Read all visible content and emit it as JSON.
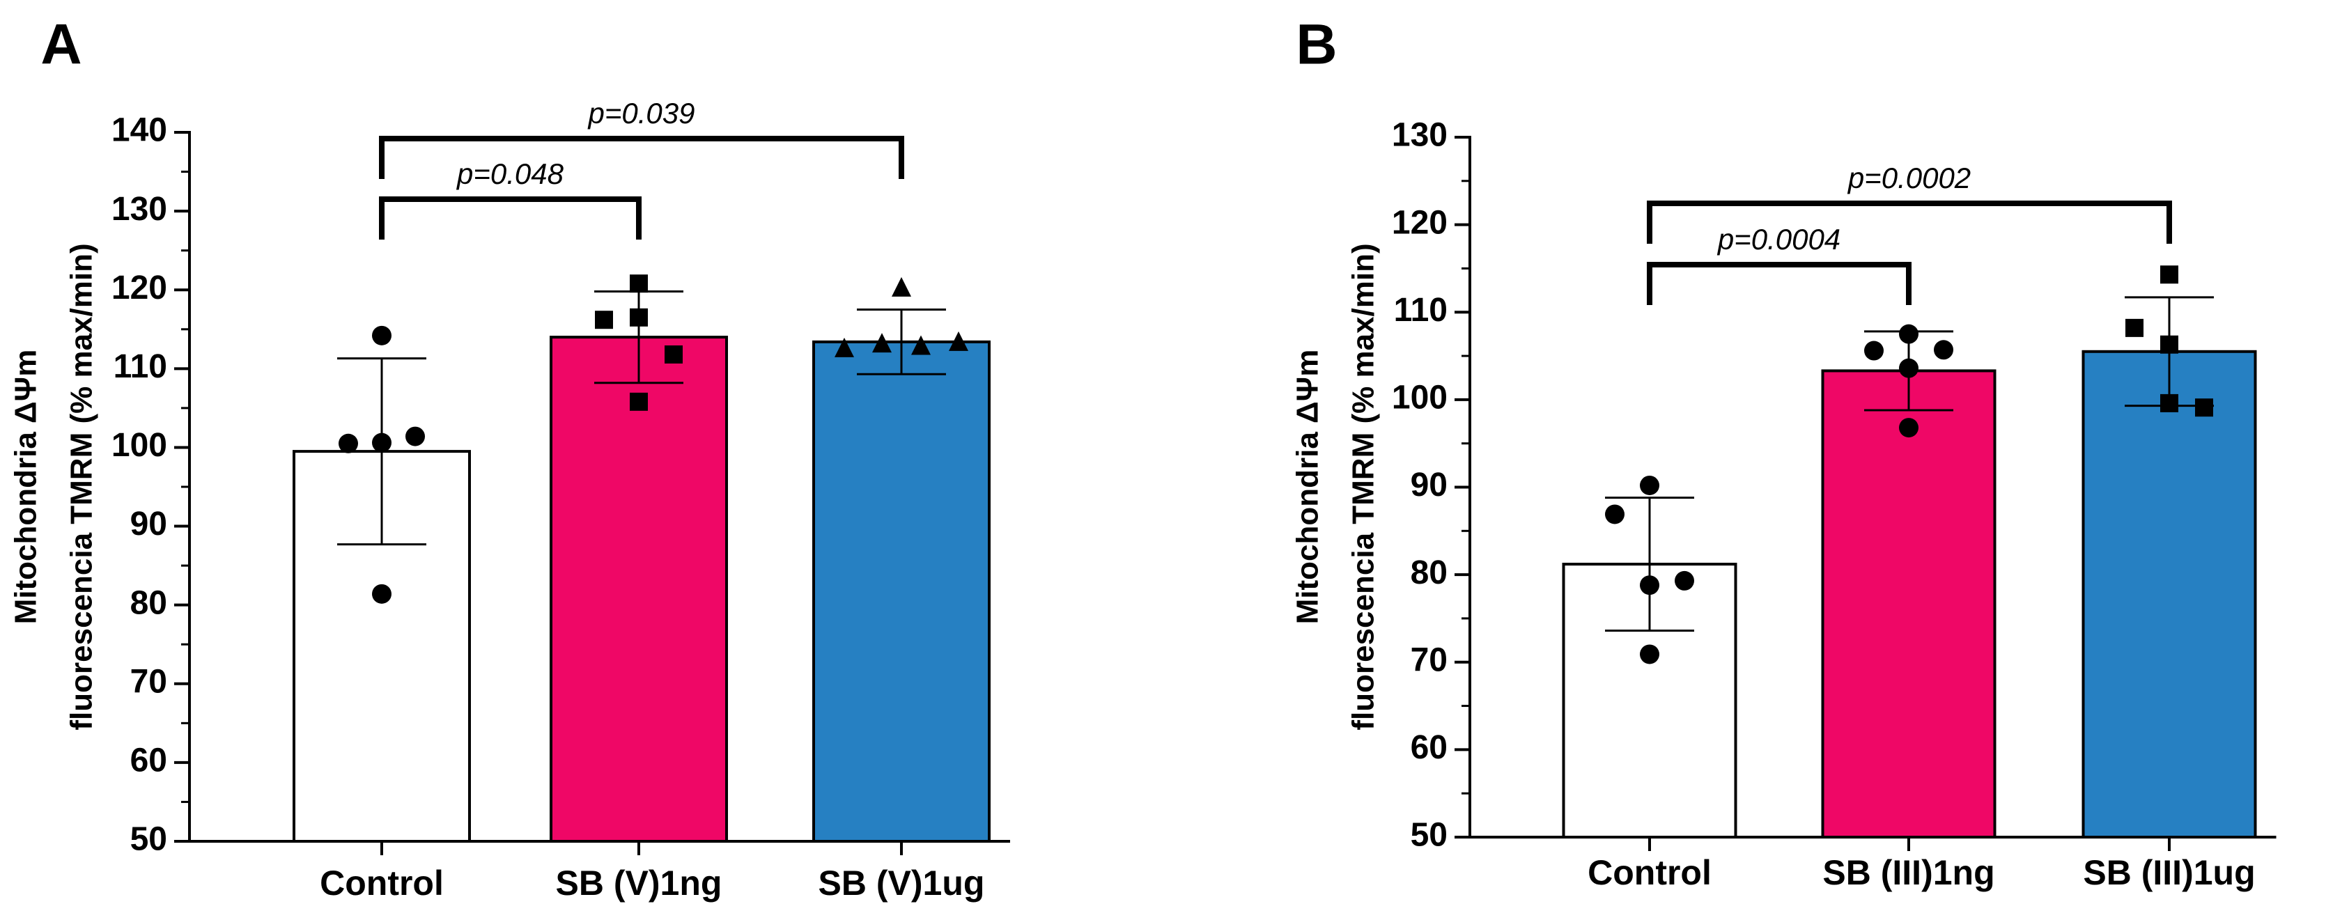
{
  "chart_data": [
    {
      "type": "bar",
      "panel_label": "A",
      "categories": [
        "Control",
        "SB (V)1ng",
        "SB (V)1ug"
      ],
      "values": [
        99.5,
        114,
        113.4
      ],
      "sd": [
        11.8,
        5.8,
        4.1
      ],
      "points": [
        [
          114.2,
          100.5,
          100.6,
          101.4,
          81.4
        ],
        [
          120.8,
          116.2,
          116.5,
          111.8,
          105.8
        ],
        [
          120.3,
          112.6,
          113.2,
          112.9,
          113.4
        ]
      ],
      "marker_shapes": [
        "circle",
        "square",
        "triangle"
      ],
      "bar_colors": [
        "#ffffff",
        "#ef0766",
        "#2680c2"
      ],
      "ylabel_line1": "Mitochondria ΔΨm",
      "ylabel_line2": "fluorescencia TMRM  (% max/min)",
      "ylim": [
        50,
        140
      ],
      "yticks": [
        50,
        60,
        70,
        80,
        90,
        100,
        110,
        120,
        130,
        140
      ],
      "minor_tick_step": 5,
      "comparisons": [
        {
          "from": 0,
          "to": 1,
          "label": "p=0.048",
          "level": 0
        },
        {
          "from": 0,
          "to": 2,
          "label": "p=0.039",
          "level": 1
        }
      ]
    },
    {
      "type": "bar",
      "panel_label": "B",
      "categories": [
        "Control",
        "SB (III)1ng",
        "SB (III)1ug"
      ],
      "values": [
        81.2,
        103.3,
        105.5
      ],
      "sd": [
        7.6,
        4.5,
        6.2
      ],
      "points": [
        [
          90.2,
          86.9,
          78.8,
          79.3,
          70.9
        ],
        [
          107.5,
          105.6,
          103.6,
          105.7,
          96.8
        ],
        [
          114.3,
          108.2,
          106.3,
          99.1,
          99.6
        ]
      ],
      "marker_shapes": [
        "circle",
        "circle",
        "square"
      ],
      "bar_colors": [
        "#ffffff",
        "#ef0766",
        "#2680c2"
      ],
      "ylabel_line1": "Mitochondria ΔΨm",
      "ylabel_line2": "fluorescencia TMRM  (% max/min)",
      "ylim": [
        50,
        130
      ],
      "yticks": [
        50,
        60,
        70,
        80,
        90,
        100,
        110,
        120,
        130
      ],
      "minor_tick_step": 5,
      "comparisons": [
        {
          "from": 0,
          "to": 1,
          "label": "p=0.0004",
          "level": 0
        },
        {
          "from": 0,
          "to": 2,
          "label": "p=0.0002",
          "level": 1
        }
      ]
    }
  ]
}
